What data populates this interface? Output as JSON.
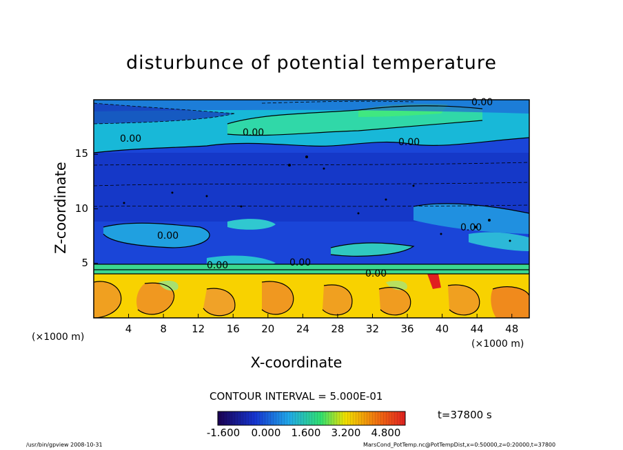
{
  "chart_data": {
    "type": "heatmap",
    "title": "disturbunce of potential temperature",
    "xlabel": "X-coordinate",
    "ylabel": "Z-coordinate",
    "x_unit": "(×1000 m)",
    "xlim": [
      0,
      50
    ],
    "ylim": [
      0,
      20
    ],
    "x_ticks": [
      "4",
      "8",
      "12",
      "16",
      "20",
      "24",
      "28",
      "32",
      "36",
      "40",
      "44",
      "48"
    ],
    "y_ticks": [
      "5",
      "10",
      "15"
    ],
    "contour_interval": "CONTOUR INTERVAL = 5.000E-01",
    "contour_labels": [
      "0.00",
      "0.00",
      "0.00",
      "0.00",
      "0.00",
      "0.00",
      "0.00",
      "0.00",
      "0.00"
    ],
    "colorbar_ticks": [
      "-1.600",
      "0.000",
      "1.600",
      "3.200",
      "4.800"
    ],
    "time": "t=37800 s",
    "layers": [
      {
        "z_range": [
          0,
          4
        ],
        "value": 3.6,
        "description_color": "#f5c000"
      },
      {
        "z_range": [
          4,
          15
        ],
        "value": -0.9,
        "description_color": "#1f4fd8"
      },
      {
        "z_range": [
          15,
          20
        ],
        "value": 0.2,
        "description_color": "#22c7d6"
      }
    ]
  },
  "footer": {
    "left": "/usr/bin/gpview   2008-10-31",
    "right": "MarsCond_PotTemp.nc@PotTempDist,x=0:50000,z=0:20000,t=37800"
  },
  "colors": {
    "dark_blue": "#1638c8",
    "cyan": "#1ec8dc",
    "green": "#2ee08a",
    "yellow": "#f8d400",
    "orange": "#f08a1c"
  }
}
